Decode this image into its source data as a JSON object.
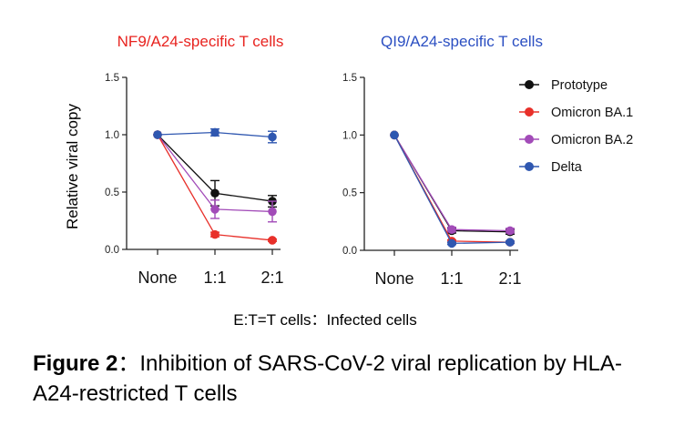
{
  "chart_data": [
    {
      "type": "line",
      "title": "NF9/A24-specific T cells",
      "title_color": "#e8231f",
      "ylabel": "Relative viral copy",
      "ylim": [
        0,
        1.5
      ],
      "yticks": [
        "0.0",
        "0.5",
        "1.0",
        "1.5"
      ],
      "categories": [
        "None",
        "1:1",
        "2:1"
      ],
      "series": [
        {
          "name": "Prototype",
          "color": "#111111",
          "values": [
            1.0,
            0.49,
            0.42
          ],
          "errors": [
            0,
            0.11,
            0.05
          ]
        },
        {
          "name": "Omicron BA.1",
          "color": "#e8302a",
          "values": [
            1.0,
            0.13,
            0.08
          ],
          "errors": [
            0,
            0.02,
            0.01
          ]
        },
        {
          "name": "Omicron BA.2",
          "color": "#a24bb8",
          "values": [
            1.0,
            0.35,
            0.33
          ],
          "errors": [
            0,
            0.08,
            0.09
          ]
        },
        {
          "name": "Delta",
          "color": "#2f57b0",
          "values": [
            1.0,
            1.02,
            0.98
          ],
          "errors": [
            0,
            0.03,
            0.05
          ]
        }
      ]
    },
    {
      "type": "line",
      "title": "QI9/A24-specific T cells",
      "title_color": "#2b4fc2",
      "ylabel": "",
      "ylim": [
        0,
        1.5
      ],
      "yticks": [
        "0.0",
        "0.5",
        "1.0",
        "1.5"
      ],
      "categories": [
        "None",
        "1:1",
        "2:1"
      ],
      "series": [
        {
          "name": "Prototype",
          "color": "#111111",
          "values": [
            1.0,
            0.17,
            0.16
          ],
          "errors": [
            0,
            0.02,
            0.02
          ]
        },
        {
          "name": "Omicron BA.1",
          "color": "#e8302a",
          "values": [
            1.0,
            0.08,
            0.07
          ],
          "errors": [
            0,
            0.01,
            0.01
          ]
        },
        {
          "name": "Omicron BA.2",
          "color": "#a24bb8",
          "values": [
            1.0,
            0.18,
            0.17
          ],
          "errors": [
            0,
            0.02,
            0.02
          ]
        },
        {
          "name": "Delta",
          "color": "#2f57b0",
          "values": [
            1.0,
            0.06,
            0.07
          ],
          "errors": [
            0,
            0.01,
            0.01
          ]
        }
      ]
    }
  ],
  "legend": {
    "placement": "right",
    "items": [
      {
        "label": "Prototype",
        "color": "#111111"
      },
      {
        "label": "Omicron BA.1",
        "color": "#e8302a"
      },
      {
        "label": "Omicron BA.2",
        "color": "#a24bb8"
      },
      {
        "label": "Delta",
        "color": "#2f57b0"
      }
    ]
  },
  "xaxis_note": "E:T=T cells：Infected cells",
  "caption": {
    "label": "Figure 2",
    "separator": "：",
    "text": "Inhibition of SARS-CoV-2 viral replication by HLA-A24-restricted T cells"
  }
}
